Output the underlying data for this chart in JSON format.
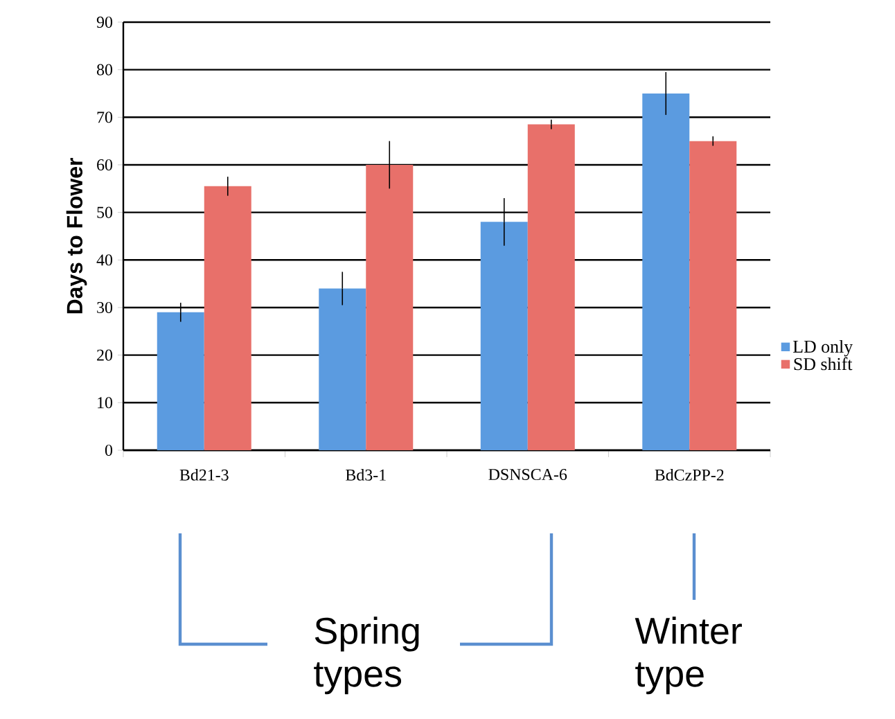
{
  "chart_data": {
    "type": "bar",
    "ylabel": "Days to Flower",
    "categories": [
      "Bd21-3",
      "Bd3-1",
      "DSNSCA-6",
      "BdCzPP-2"
    ],
    "series": [
      {
        "name": "LD only",
        "color": "#5b9be0",
        "values": [
          29,
          34,
          48,
          75
        ],
        "errors": [
          2,
          3.5,
          5,
          4.5
        ]
      },
      {
        "name": "SD shift",
        "color": "#e8706a",
        "values": [
          55.5,
          60,
          68.5,
          65
        ],
        "errors": [
          2,
          5,
          1,
          1
        ]
      }
    ],
    "ylim": [
      0,
      90
    ],
    "yticks": [
      0,
      10,
      20,
      30,
      40,
      50,
      60,
      70,
      80,
      90
    ],
    "grid": "y",
    "legend": "right",
    "annotations": [
      "Spring types",
      "Winter type"
    ]
  }
}
